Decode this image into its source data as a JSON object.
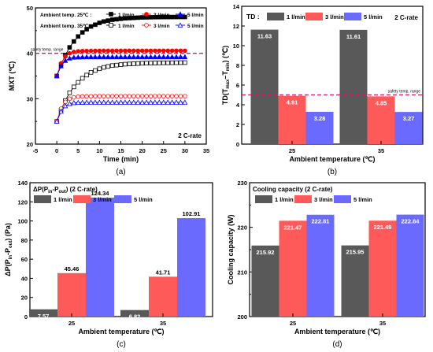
{
  "figure": {
    "colors": {
      "dark": "#595959",
      "red": "#ff5a5a",
      "blue": "#6a6aff",
      "refline": "#e0136b",
      "axis": "#000000"
    },
    "panels": [
      {
        "id": "a",
        "caption": "(a)"
      },
      {
        "id": "b",
        "caption": "(b)"
      },
      {
        "id": "c",
        "caption": "(c)"
      },
      {
        "id": "d",
        "caption": "(d)"
      }
    ]
  },
  "chart_data": [
    {
      "id": "a",
      "type": "line",
      "xlabel": "Time (min)",
      "ylabel": "MXT (℃)",
      "xlim": [
        -5,
        35
      ],
      "ylim": [
        20,
        50
      ],
      "xticks": [
        "-5",
        "0",
        "5",
        "10",
        "15",
        "20",
        "25",
        "30",
        "35"
      ],
      "yticks": [
        "20",
        "30",
        "40",
        "50"
      ],
      "x": [
        0,
        1,
        2,
        3,
        4,
        5,
        6,
        7,
        8,
        9,
        10,
        11,
        12,
        13,
        14,
        15,
        16,
        17,
        18,
        19,
        20,
        21,
        22,
        23,
        24,
        25,
        26,
        27,
        28,
        29,
        30
      ],
      "legend_group_labels": [
        "Ambient temp. 25℃ :",
        "Ambient temp. 35℃ :"
      ],
      "series": [
        {
          "name": "1 l/min",
          "group": 0,
          "marker": "square-filled",
          "color": "#000000",
          "values": [
            35.0,
            37.5,
            39.6,
            41.3,
            42.6,
            43.7,
            44.6,
            45.3,
            45.9,
            46.3,
            46.7,
            47.0,
            47.2,
            47.4,
            47.5,
            47.6,
            47.7,
            47.75,
            47.8,
            47.85,
            47.9,
            47.92,
            47.94,
            47.96,
            47.97,
            47.98,
            47.98,
            47.99,
            47.99,
            48.0,
            48.0
          ]
        },
        {
          "name": "3 l/min",
          "group": 0,
          "marker": "circle-filled",
          "color": "#ff0000",
          "values": [
            35.0,
            37.8,
            39.3,
            40.0,
            40.3,
            40.45,
            40.5,
            40.52,
            40.54,
            40.55,
            40.55,
            40.56,
            40.56,
            40.56,
            40.56,
            40.56,
            40.57,
            40.57,
            40.57,
            40.57,
            40.57,
            40.57,
            40.57,
            40.57,
            40.57,
            40.57,
            40.57,
            40.57,
            40.57,
            40.57,
            40.57
          ]
        },
        {
          "name": "5 l/min",
          "group": 0,
          "marker": "triangle-filled",
          "color": "#0000ff",
          "values": [
            35.0,
            37.2,
            38.4,
            38.9,
            39.1,
            39.15,
            39.18,
            39.2,
            39.2,
            39.2,
            39.2,
            39.2,
            39.2,
            39.2,
            39.2,
            39.2,
            39.2,
            39.2,
            39.2,
            39.2,
            39.2,
            39.2,
            39.2,
            39.2,
            39.2,
            39.2,
            39.2,
            39.2,
            39.2,
            39.2,
            39.2
          ]
        },
        {
          "name": "1 l/min",
          "group": 1,
          "marker": "square-open",
          "color": "#000000",
          "values": [
            25.0,
            27.5,
            29.6,
            31.3,
            32.6,
            33.6,
            34.5,
            35.2,
            35.8,
            36.2,
            36.6,
            36.9,
            37.1,
            37.3,
            37.4,
            37.5,
            37.6,
            37.65,
            37.7,
            37.75,
            37.8,
            37.82,
            37.84,
            37.86,
            37.88,
            37.9,
            37.9,
            37.92,
            37.93,
            37.94,
            37.95
          ]
        },
        {
          "name": "3 l/min",
          "group": 1,
          "marker": "circle-open",
          "color": "#ff0000",
          "values": [
            25.0,
            27.8,
            29.3,
            30.0,
            30.3,
            30.45,
            30.5,
            30.52,
            30.53,
            30.54,
            30.55,
            30.55,
            30.55,
            30.55,
            30.55,
            30.55,
            30.55,
            30.55,
            30.55,
            30.55,
            30.55,
            30.55,
            30.55,
            30.55,
            30.55,
            30.55,
            30.55,
            30.55,
            30.55,
            30.55,
            30.55
          ]
        },
        {
          "name": "5 l/min",
          "group": 1,
          "marker": "triangle-open",
          "color": "#0000ff",
          "values": [
            25.0,
            27.2,
            28.4,
            28.9,
            29.1,
            29.15,
            29.18,
            29.2,
            29.2,
            29.2,
            29.2,
            29.2,
            29.2,
            29.2,
            29.2,
            29.2,
            29.2,
            29.2,
            29.2,
            29.2,
            29.2,
            29.2,
            29.2,
            29.2,
            29.2,
            29.2,
            29.2,
            29.2,
            29.2,
            29.2,
            29.2
          ]
        }
      ],
      "reference_line": {
        "y": 40,
        "label": "safety temp. range"
      },
      "annotation": "2 C-rate"
    },
    {
      "id": "b",
      "type": "bar",
      "xlabel": "Ambient temperature (℃)",
      "ylabel_parts": [
        "TD(T",
        "max",
        "–T",
        "min",
        ") (℃)"
      ],
      "ylim": [
        0,
        14
      ],
      "yticks": [
        "0",
        "2",
        "4",
        "6",
        "8",
        "10",
        "12",
        "14"
      ],
      "categories": [
        "25",
        "35"
      ],
      "legend_title": "TD :",
      "series": [
        {
          "name": "1 l/min",
          "values": [
            11.63,
            11.61
          ],
          "labels": [
            "11.63",
            "11.61"
          ]
        },
        {
          "name": "3 l/min",
          "values": [
            4.91,
            4.85
          ],
          "labels": [
            "4.91",
            "4.85"
          ]
        },
        {
          "name": "5 l/min",
          "values": [
            3.28,
            3.27
          ],
          "labels": [
            "3.28",
            "3.27"
          ]
        }
      ],
      "reference_line": {
        "y": 5,
        "label": "safety temp. range"
      },
      "annotation": "2 C-rate"
    },
    {
      "id": "c",
      "type": "bar",
      "xlabel": "Ambient temperature (℃)",
      "ylabel_parts": [
        "ΔP(P",
        "in",
        "-P",
        "out",
        ") (Pa)"
      ],
      "ylim": [
        0,
        140
      ],
      "yticks": [
        "0",
        "20",
        "40",
        "60",
        "80",
        "100",
        "120",
        "140"
      ],
      "categories": [
        "25",
        "35"
      ],
      "title_parts": [
        "ΔP(P",
        "in",
        "-P",
        "out",
        ") (2 C-rate)"
      ],
      "series": [
        {
          "name": "1 l/min",
          "values": [
            7.57,
            6.82
          ],
          "labels": [
            "7.57",
            "6.82"
          ]
        },
        {
          "name": "3 l/min",
          "values": [
            45.46,
            41.71
          ],
          "labels": [
            "45.46",
            "41.71"
          ]
        },
        {
          "name": "5 l/min",
          "values": [
            124.34,
            102.91
          ],
          "labels": [
            "124.34",
            "102.91"
          ]
        }
      ]
    },
    {
      "id": "d",
      "type": "bar",
      "xlabel": "Ambient temperature (℃)",
      "ylabel": "Cooling capacity (W)",
      "ylim": [
        200,
        230
      ],
      "yticks": [
        "200",
        "210",
        "220",
        "230"
      ],
      "categories": [
        "25",
        "35"
      ],
      "title": "Cooling capacity (2 C-rate)",
      "series": [
        {
          "name": "1 l/min",
          "values": [
            215.92,
            215.95
          ],
          "labels": [
            "215.92",
            "215.95"
          ]
        },
        {
          "name": "3 l/min",
          "values": [
            221.47,
            221.49
          ],
          "labels": [
            "221.47",
            "221.49"
          ]
        },
        {
          "name": "5 l/min",
          "values": [
            222.81,
            222.84
          ],
          "labels": [
            "222.81",
            "222.84"
          ]
        }
      ]
    }
  ]
}
